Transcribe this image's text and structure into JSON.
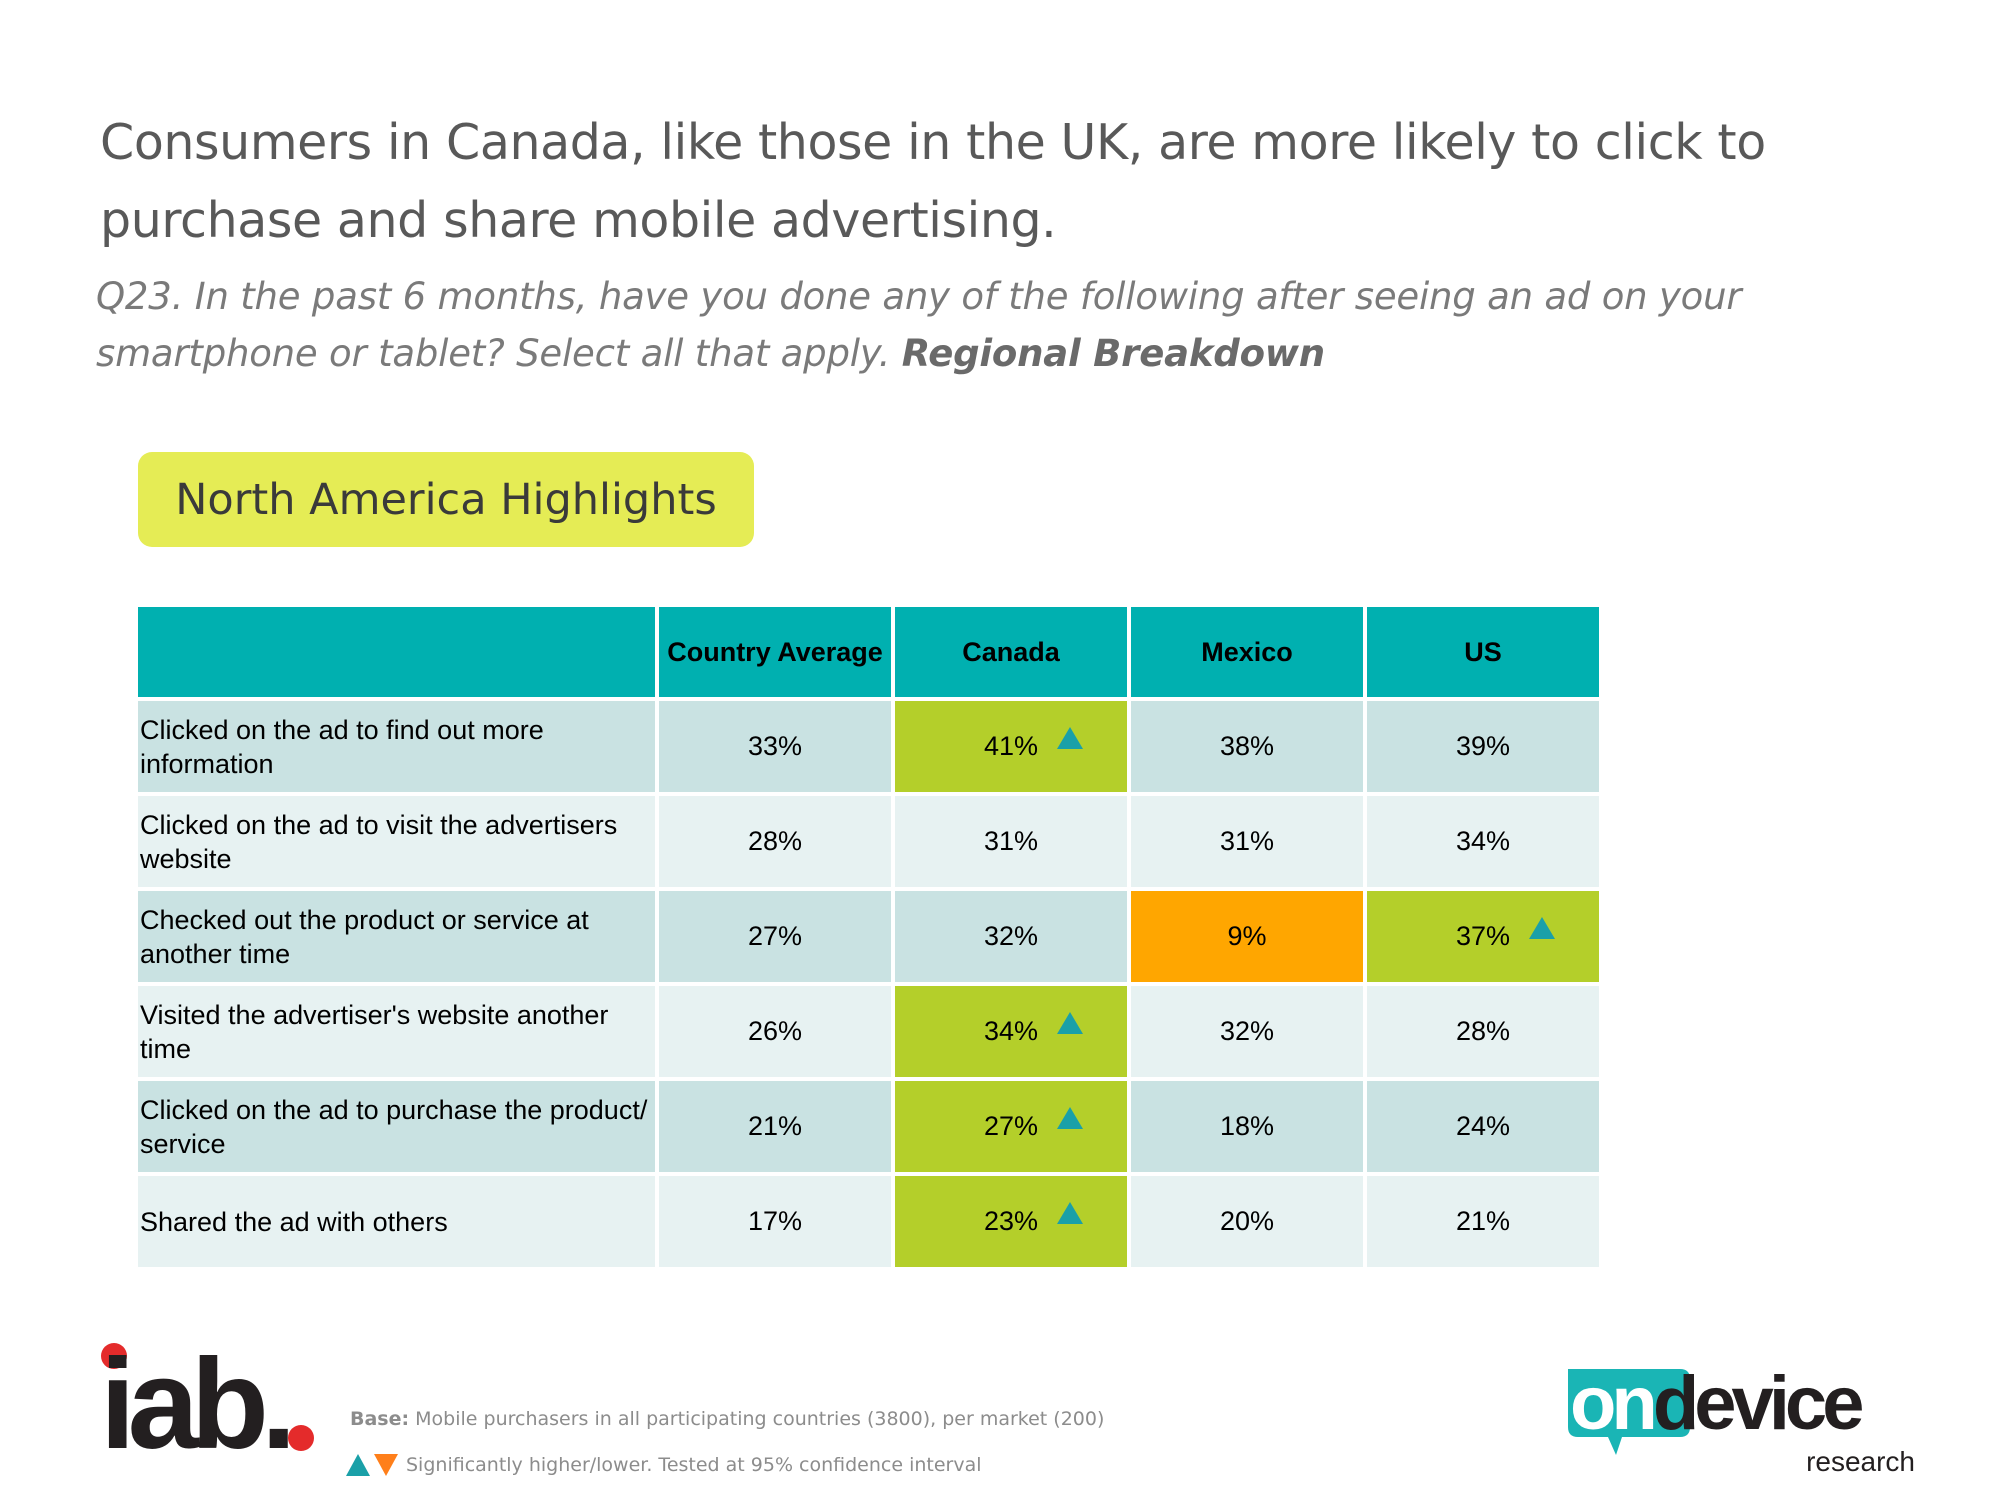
{
  "title": "Consumers in Canada, like those in the UK, are more likely to click to purchase and share mobile advertising.",
  "question": {
    "text": "Q23. In the past 6 months, have you done any of the following after seeing an ad on your smartphone or tablet? Select all that apply.",
    "emphasis": "Regional Breakdown"
  },
  "highlight_label": "North America Highlights",
  "table": {
    "columns": [
      "",
      "Country Average",
      "Canada",
      "Mexico",
      "US"
    ],
    "rows": [
      {
        "label": "Clicked on the ad to find out more information",
        "values": [
          "33%",
          "41%",
          "38%",
          "39%"
        ]
      },
      {
        "label": "Clicked on the ad to visit the advertisers website",
        "values": [
          "28%",
          "31%",
          "31%",
          "34%"
        ]
      },
      {
        "label": "Checked out the product or service at another time",
        "values": [
          "27%",
          "32%",
          "9%",
          "37%"
        ]
      },
      {
        "label": "Visited the advertiser's website another time",
        "values": [
          "26%",
          "34%",
          "32%",
          "28%"
        ]
      },
      {
        "label": "Clicked on the ad to purchase the product/ service",
        "values": [
          "21%",
          "27%",
          "18%",
          "24%"
        ]
      },
      {
        "label": "Shared the ad with others",
        "values": [
          "17%",
          "23%",
          "20%",
          "21%"
        ]
      }
    ],
    "colors": {
      "header": "#00b0b0",
      "row_dark": "#c9e2e2",
      "row_light": "#e7f2f2",
      "significantly_higher": "#b4cf2a",
      "significantly_lower": "#ffa600",
      "triangle_up": "#1aa0a8",
      "triangle_down": "#ff7f1a"
    }
  },
  "footer": {
    "iab_logo_text": "iab.",
    "base_label": "Base:",
    "base_text": "Mobile purchasers in all participating countries (3800), per market (200)",
    "significance_text": "Significantly higher/lower. Tested at 95% confidence interval",
    "ondevice_logo_main": "ondevice",
    "ondevice_logo_sub": "research"
  }
}
